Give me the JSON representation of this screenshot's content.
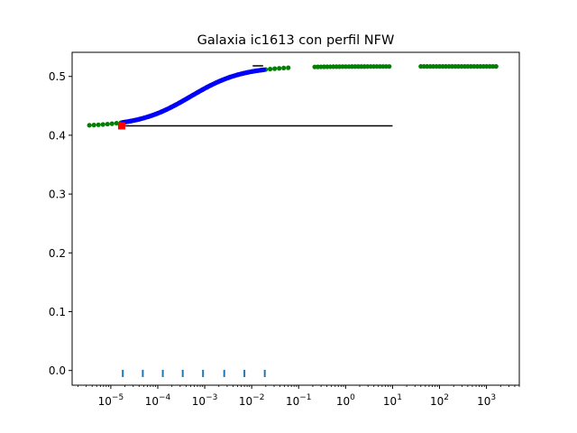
{
  "chart_data": {
    "type": "scatter",
    "title": "Galaxia ic1613 con perfil NFW",
    "xlabel": "",
    "ylabel": "",
    "xscale": "log",
    "xlim": [
      1.5e-06,
      5000
    ],
    "ylim": [
      -0.025,
      0.541
    ],
    "x_ticks": [
      {
        "value": 1e-05,
        "base": "10",
        "exp": "−5"
      },
      {
        "value": 0.0001,
        "base": "10",
        "exp": "−4"
      },
      {
        "value": 0.001,
        "base": "10",
        "exp": "−3"
      },
      {
        "value": 0.01,
        "base": "10",
        "exp": "−2"
      },
      {
        "value": 0.1,
        "base": "10",
        "exp": "−1"
      },
      {
        "value": 1,
        "base": "10",
        "exp": "0"
      },
      {
        "value": 10,
        "base": "10",
        "exp": "1"
      },
      {
        "value": 100,
        "base": "10",
        "exp": "2"
      },
      {
        "value": 1000,
        "base": "10",
        "exp": "3"
      }
    ],
    "y_ticks": [
      {
        "value": 0.0,
        "label": "0.0"
      },
      {
        "value": 0.1,
        "label": "0.1"
      },
      {
        "value": 0.2,
        "label": "0.2"
      },
      {
        "value": 0.3,
        "label": "0.3"
      },
      {
        "value": 0.4,
        "label": "0.4"
      },
      {
        "value": 0.5,
        "label": "0.5"
      }
    ],
    "colors": {
      "green": "#008000",
      "blue": "#0000ff",
      "red": "#ff0000",
      "black": "#000000",
      "tick_marks": "#1f77b4"
    },
    "curve": {
      "y_low": 0.415,
      "y_high": 0.517,
      "x_mid": 0.0005,
      "width_decades": 0.55
    },
    "series": [
      {
        "color": "green",
        "x_range": [
          3.5e-06,
          0.06
        ],
        "points": 45
      },
      {
        "color": "green",
        "x_range": [
          0.22,
          8.5
        ],
        "points": 25
      },
      {
        "color": "green",
        "x_range": [
          40,
          1600
        ],
        "points": 25
      },
      {
        "color": "blue",
        "x_range": [
          1.8e-05,
          0.018
        ],
        "points": 120
      }
    ],
    "red_marker": {
      "x": 1.7e-05,
      "y": 0.416
    },
    "hline": {
      "y": 0.416,
      "x_start": 1.7e-05,
      "x_end": 10
    },
    "short_line": {
      "y": 0.518,
      "x_start": 0.0105,
      "x_end": 0.0175
    },
    "vertical_ticks": {
      "y": -0.005,
      "x": [
        1.8e-05,
        4.8e-05,
        0.000128,
        0.00034,
        0.00092,
        0.0026,
        0.007,
        0.019
      ]
    }
  }
}
